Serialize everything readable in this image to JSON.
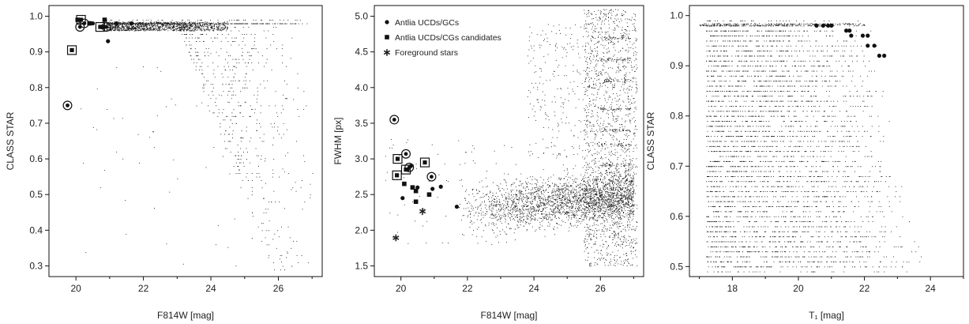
{
  "chart_data": [
    {
      "type": "scatter",
      "xlabel": "F814W [mag]",
      "ylabel": "CLASS STAR",
      "xlim": [
        19.2,
        27.3
      ],
      "ylim": [
        0.27,
        1.03
      ],
      "xticks": [
        20,
        22,
        24,
        26
      ],
      "yticks": [
        0.3,
        0.4,
        0.5,
        0.6,
        0.7,
        0.8,
        0.9,
        1.0
      ],
      "series": [
        {
          "marker": "circle",
          "points": [
            [
              20.5,
              0.98
            ],
            [
              20.95,
              0.93
            ],
            [
              21.2,
              0.98
            ],
            [
              21.65,
              0.98
            ]
          ]
        },
        {
          "marker": "square",
          "points": [
            [
              20.05,
              0.99
            ],
            [
              20.4,
              0.98
            ],
            [
              20.85,
              0.99
            ],
            [
              20.8,
              0.97
            ]
          ]
        },
        {
          "marker": "circled",
          "points": [
            [
              19.75,
              0.75
            ],
            [
              20.12,
              0.97
            ],
            [
              20.25,
              0.98
            ],
            [
              20.9,
              0.97
            ]
          ]
        },
        {
          "marker": "boxed",
          "points": [
            [
              19.88,
              0.905
            ],
            [
              20.15,
              0.99
            ],
            [
              20.72,
              0.97
            ]
          ]
        }
      ]
    },
    {
      "type": "scatter",
      "xlabel": "F814W [mag]",
      "ylabel": "FWHM [px]",
      "xlim": [
        19.2,
        27.3
      ],
      "ylim": [
        1.35,
        5.15
      ],
      "xticks": [
        20,
        22,
        24,
        26
      ],
      "yticks": [
        1.5,
        2.0,
        2.5,
        3.0,
        3.5,
        4.0,
        4.5,
        5.0
      ],
      "legend": [
        "Antlia UCDs/GCs",
        "Antlia UCDs/CGs candidates",
        "Foreground stars"
      ],
      "series": [
        {
          "name": "Antlia UCDs/GCs",
          "marker": "circle",
          "points": [
            [
              20.05,
              2.45
            ],
            [
              20.5,
              2.6
            ],
            [
              20.95,
              2.58
            ],
            [
              21.2,
              2.61
            ],
            [
              21.68,
              2.33
            ],
            [
              20.3,
              2.9
            ],
            [
              20.2,
              2.85
            ]
          ]
        },
        {
          "name": "Antlia UCDs/CGs candidates",
          "marker": "square",
          "points": [
            [
              20.1,
              2.65
            ],
            [
              20.35,
              2.6
            ],
            [
              20.45,
              2.4
            ],
            [
              20.85,
              2.5
            ],
            [
              20.45,
              2.55
            ]
          ]
        },
        {
          "name": "Foreground stars",
          "marker": "star",
          "points": [
            [
              19.85,
              1.9
            ],
            [
              20.65,
              2.27
            ]
          ]
        },
        {
          "marker": "circled",
          "points": [
            [
              19.8,
              3.55
            ],
            [
              20.15,
              3.07
            ],
            [
              20.25,
              2.88
            ],
            [
              20.92,
              2.75
            ]
          ]
        },
        {
          "marker": "boxed",
          "points": [
            [
              19.9,
              3.0
            ],
            [
              20.15,
              2.85
            ],
            [
              19.88,
              2.77
            ],
            [
              20.72,
              2.95
            ]
          ]
        }
      ]
    },
    {
      "type": "scatter",
      "xlabel": "T₁ [mag]",
      "ylabel": "CLASS STAR",
      "xlim": [
        16.7,
        25.0
      ],
      "ylim": [
        0.48,
        1.02
      ],
      "xticks": [
        18,
        20,
        22,
        24
      ],
      "yticks": [
        0.5,
        0.6,
        0.7,
        0.8,
        0.9,
        1.0
      ],
      "series": [
        {
          "marker": "circle",
          "points": [
            [
              20.55,
              0.98
            ],
            [
              20.75,
              0.98
            ],
            [
              20.9,
              0.98
            ],
            [
              21.0,
              0.98
            ],
            [
              21.45,
              0.97
            ],
            [
              21.55,
              0.97
            ],
            [
              21.6,
              0.96
            ],
            [
              21.95,
              0.96
            ],
            [
              22.1,
              0.96
            ],
            [
              22.1,
              0.94
            ],
            [
              22.3,
              0.94
            ],
            [
              22.45,
              0.92
            ],
            [
              22.6,
              0.92
            ]
          ]
        }
      ]
    }
  ]
}
